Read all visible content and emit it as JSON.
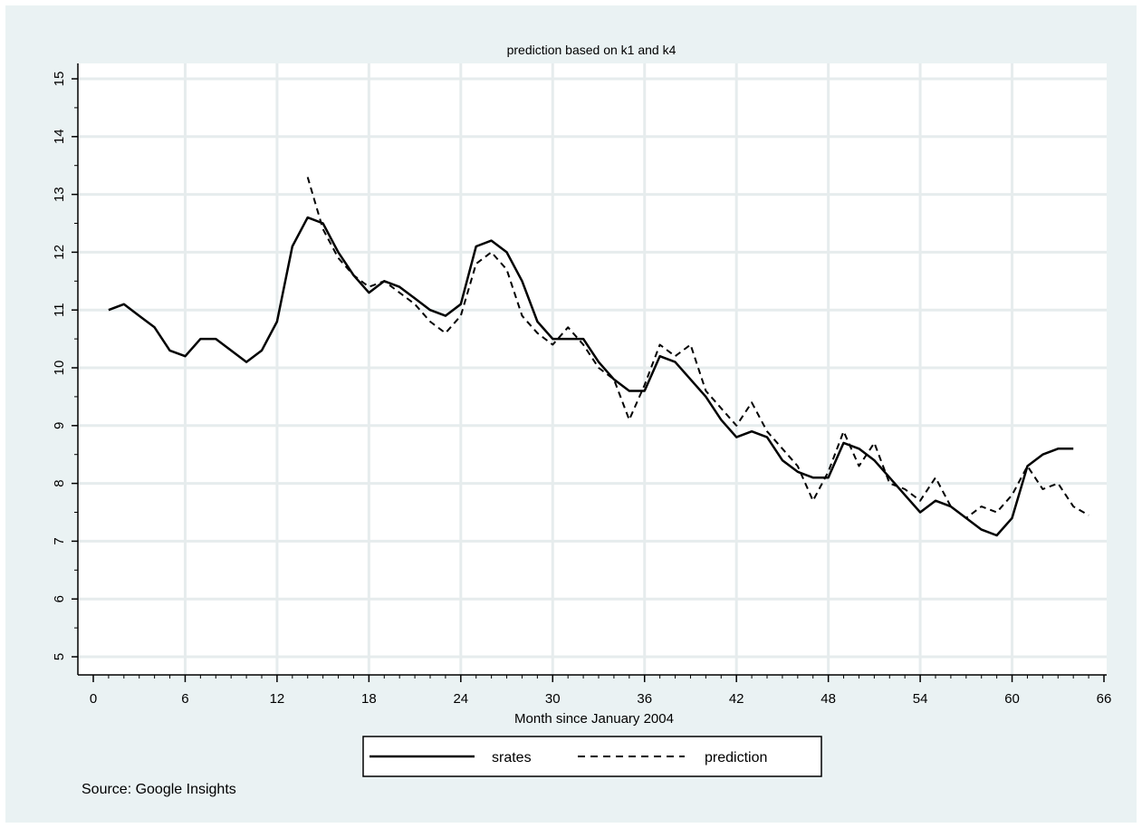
{
  "chart_data": {
    "type": "line",
    "title": "prediction based on k1 and k4",
    "xlabel": "Month since January 2004",
    "ylabel": "",
    "xlim": [
      0,
      66
    ],
    "ylim": [
      5,
      15
    ],
    "xticks": [
      0,
      6,
      12,
      18,
      24,
      30,
      36,
      42,
      48,
      54,
      60,
      66
    ],
    "yticks": [
      5,
      6,
      7,
      8,
      9,
      10,
      11,
      12,
      13,
      14,
      15
    ],
    "grid": true,
    "legend_position": "bottom",
    "note": "Source: Google Insights",
    "series": [
      {
        "name": "srates",
        "style": "solid",
        "color": "#000000",
        "x": [
          1,
          2,
          3,
          4,
          5,
          6,
          7,
          8,
          9,
          10,
          11,
          12,
          13,
          14,
          15,
          16,
          17,
          18,
          19,
          20,
          21,
          22,
          23,
          24,
          25,
          26,
          27,
          28,
          29,
          30,
          31,
          32,
          33,
          34,
          35,
          36,
          37,
          38,
          39,
          40,
          41,
          42,
          43,
          44,
          45,
          46,
          47,
          48,
          49,
          50,
          51,
          52,
          53,
          54,
          55,
          56,
          57,
          58,
          59,
          60,
          61,
          62,
          63,
          64
        ],
        "values": [
          11.0,
          11.1,
          10.9,
          10.7,
          10.3,
          10.2,
          10.5,
          10.5,
          10.3,
          10.1,
          10.3,
          10.8,
          12.1,
          12.6,
          12.5,
          12.0,
          11.6,
          11.3,
          11.5,
          11.4,
          11.2,
          11.0,
          10.9,
          11.1,
          12.1,
          12.2,
          12.0,
          11.5,
          10.8,
          10.5,
          10.5,
          10.5,
          10.1,
          9.8,
          9.6,
          9.6,
          10.2,
          10.1,
          9.8,
          9.5,
          9.1,
          8.8,
          8.9,
          8.8,
          8.4,
          8.2,
          8.1,
          8.1,
          8.7,
          8.6,
          8.4,
          8.1,
          7.8,
          7.5,
          7.7,
          7.6,
          7.4,
          7.2,
          7.1,
          7.4,
          8.3,
          8.5,
          8.6,
          8.6
        ]
      },
      {
        "name": "prediction",
        "style": "dashed",
        "color": "#000000",
        "x": [
          14,
          15,
          16,
          17,
          18,
          19,
          20,
          21,
          22,
          23,
          24,
          25,
          26,
          27,
          28,
          29,
          30,
          31,
          32,
          33,
          34,
          35,
          36,
          37,
          38,
          39,
          40,
          41,
          42,
          43,
          44,
          45,
          46,
          47,
          48,
          49,
          50,
          51,
          52,
          53,
          54,
          55,
          56,
          57,
          58,
          59,
          60,
          61,
          62,
          63,
          64,
          65
        ],
        "values": [
          13.3,
          12.4,
          11.9,
          11.6,
          11.4,
          11.5,
          11.3,
          11.1,
          10.8,
          10.6,
          10.9,
          11.8,
          12.0,
          11.7,
          10.9,
          10.6,
          10.4,
          10.7,
          10.4,
          10.0,
          9.8,
          9.1,
          9.7,
          10.4,
          10.2,
          10.4,
          9.6,
          9.3,
          9.0,
          9.4,
          8.9,
          8.6,
          8.3,
          7.7,
          8.2,
          8.9,
          8.3,
          8.7,
          8.0,
          7.9,
          7.7,
          8.1,
          7.6,
          7.4,
          7.6,
          7.5,
          7.8,
          8.3,
          7.9,
          8.0,
          7.6,
          7.45
        ]
      }
    ]
  }
}
